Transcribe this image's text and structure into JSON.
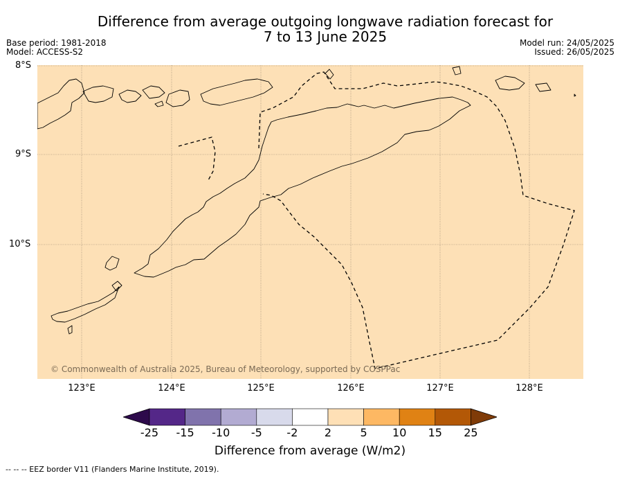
{
  "title": {
    "line1": "Difference from average outgoing longwave radiation forecast for",
    "line2": "7 to 13 June 2025"
  },
  "meta": {
    "base_period": "Base period: 1981-2018",
    "model": "Model: ACCESS-S2",
    "model_run": "Model run: 24/05/2025",
    "issued": "Issued: 26/05/2025"
  },
  "axes": {
    "lat_labels": [
      "8°S",
      "9°S",
      "10°S"
    ],
    "lon_labels": [
      "123°E",
      "124°E",
      "125°E",
      "126°E",
      "127°E",
      "128°E"
    ]
  },
  "map": {
    "background_color": "#fde0b6",
    "category": "2 to 5 W/m2 (uniform across map)"
  },
  "copyright": "© Commonwealth of Australia 2025, Bureau of Meteorology, supported by COSPPac",
  "colorbar": {
    "label": "Difference from average (W/m2)",
    "ticks": [
      "-25",
      "-15",
      "-10",
      "-5",
      "-2",
      "2",
      "5",
      "10",
      "15",
      "25"
    ],
    "colors": {
      "below_min": "#2d0a4b",
      "bins": [
        "#542788",
        "#8073ac",
        "#b2abd2",
        "#d8daeb",
        "#ffffff",
        "#fee0b6",
        "#fdb863",
        "#e08214",
        "#b35806"
      ],
      "above_max": "#7f3b08"
    }
  },
  "eez_note": "--  --  -- EEZ border V11 (Flanders Marine Institute, 2019)."
}
